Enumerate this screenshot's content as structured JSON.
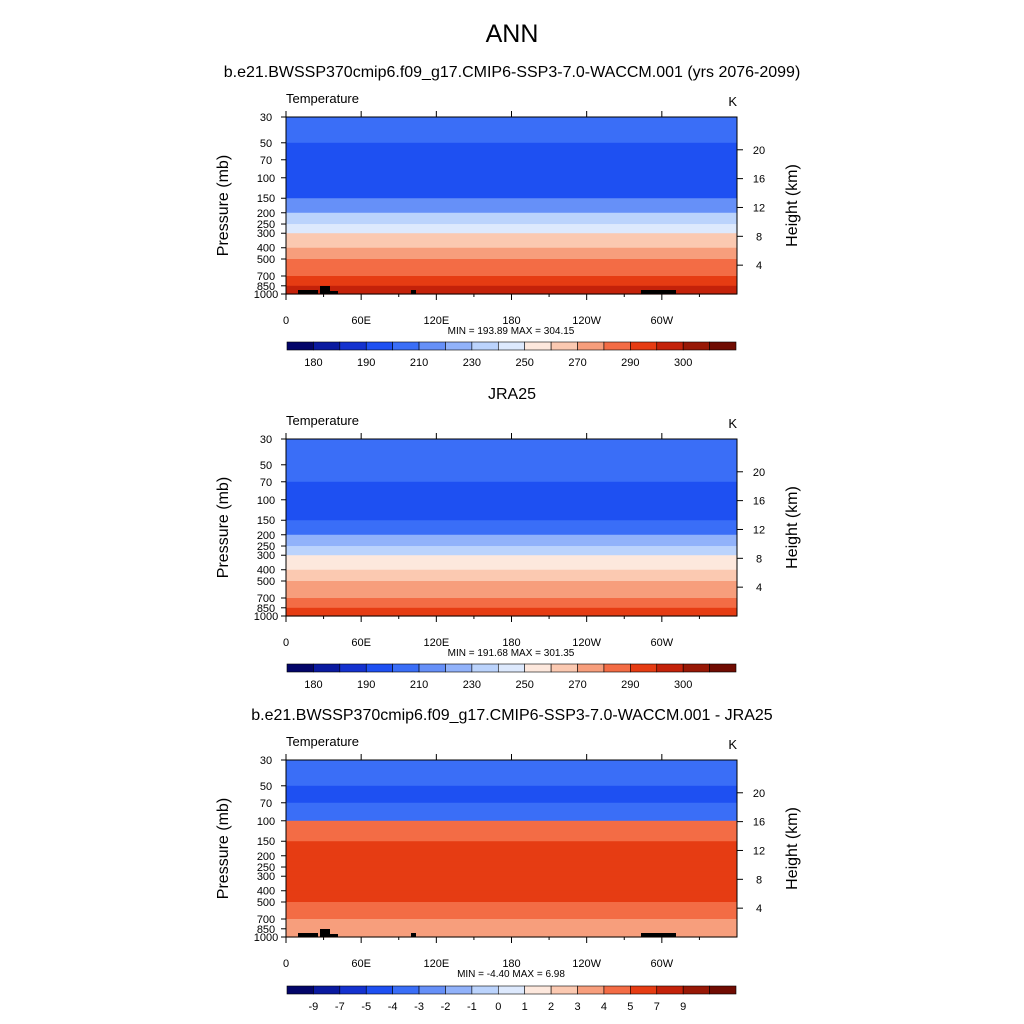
{
  "figure": {
    "title": "ANN",
    "left_axis_label": "Pressure (mb)",
    "right_axis_label": "Height (km)",
    "pressure_ticks": [
      30,
      50,
      70,
      100,
      150,
      200,
      250,
      300,
      400,
      500,
      700,
      850,
      1000
    ],
    "height_ticks": [
      20,
      16,
      12,
      8,
      4
    ],
    "lon_ticks": [
      "0",
      "60E",
      "120E",
      "180",
      "120W",
      "60W"
    ]
  },
  "panels": [
    {
      "title": "b.e21.BWSSP370cmip6.f09_g17.CMIP6-SSP3-7.0-WACCM.001 (yrs 2076-2099)",
      "variable": "Temperature",
      "units": "K",
      "stats": "MIN = 193.89  MAX = 304.15"
    },
    {
      "title": "JRA25",
      "variable": "Temperature",
      "units": "K",
      "stats": "MIN = 191.68  MAX = 301.35"
    },
    {
      "title": "b.e21.BWSSP370cmip6.f09_g17.CMIP6-SSP3-7.0-WACCM.001 - JRA25",
      "variable": "Temperature",
      "units": "K",
      "stats": "MIN =  -4.40  MAX =   6.98"
    }
  ],
  "colors": {
    "abs_palette": [
      "#030569",
      "#0a1aa0",
      "#1432cf",
      "#1e50f2",
      "#3a6ef7",
      "#6690f8",
      "#91b2fa",
      "#bbd3fc",
      "#dde9fd",
      "#fde8dd",
      "#fbc9b1",
      "#f79e7c",
      "#f36c45",
      "#e63c13",
      "#c4220a",
      "#981806",
      "#700c02"
    ],
    "diff_palette": [
      "#030569",
      "#0a1aa0",
      "#1432cf",
      "#1e50f2",
      "#3a6ef7",
      "#6690f8",
      "#91b2fa",
      "#bbd3fc",
      "#dde9fd",
      "#fde8dd",
      "#fbc9b1",
      "#f79e7c",
      "#f36c45",
      "#e63c13",
      "#c4220a",
      "#981806",
      "#700c02"
    ],
    "topography": "#000000"
  },
  "chart_data": [
    {
      "type": "heatmap",
      "title": "b.e21.BWSSP370cmip6.f09_g17.CMIP6-SSP3-7.0-WACCM.001 (yrs 2076-2099)",
      "subtitle": "Temperature",
      "units": "K",
      "x": [
        "0",
        "60E",
        "120E",
        "180",
        "120W",
        "60W"
      ],
      "ylabel": "Pressure (mb)",
      "y2label": "Height (km)",
      "y_pressure_levels": [
        30,
        50,
        70,
        100,
        150,
        200,
        250,
        300,
        400,
        500,
        700,
        850,
        1000
      ],
      "min": 193.89,
      "max": 304.15,
      "colorbar_labels": [
        "180",
        "190",
        "210",
        "230",
        "250",
        "270",
        "290",
        "300"
      ],
      "pressure_band_colors": {
        "30": "#3a6ef7",
        "50": "#1e50f2",
        "70": "#1e50f2",
        "100": "#1e50f2",
        "150": "#6690f8",
        "200": "#bbd3fc",
        "250": "#dde9fd",
        "300": "#fbc9b1",
        "400": "#f79e7c",
        "500": "#f36c45",
        "700": "#e63c13",
        "850": "#c4220a",
        "1000": "#981806"
      }
    },
    {
      "type": "heatmap",
      "title": "JRA25",
      "subtitle": "Temperature",
      "units": "K",
      "x": [
        "0",
        "60E",
        "120E",
        "180",
        "120W",
        "60W"
      ],
      "ylabel": "Pressure (mb)",
      "y2label": "Height (km)",
      "y_pressure_levels": [
        30,
        50,
        70,
        100,
        150,
        200,
        250,
        300,
        400,
        500,
        700,
        850,
        1000
      ],
      "min": 191.68,
      "max": 301.35,
      "colorbar_labels": [
        "180",
        "190",
        "210",
        "230",
        "250",
        "270",
        "290",
        "300"
      ],
      "pressure_band_colors": {
        "30": "#3a6ef7",
        "50": "#3a6ef7",
        "70": "#1e50f2",
        "100": "#1e50f2",
        "150": "#3a6ef7",
        "200": "#91b2fa",
        "250": "#bbd3fc",
        "300": "#fde8dd",
        "400": "#fbc9b1",
        "500": "#f79e7c",
        "700": "#f36c45",
        "850": "#e63c13",
        "1000": "#c4220a"
      }
    },
    {
      "type": "heatmap",
      "title": "b.e21.BWSSP370cmip6.f09_g17.CMIP6-SSP3-7.0-WACCM.001 - JRA25",
      "subtitle": "Temperature",
      "units": "K",
      "x": [
        "0",
        "60E",
        "120E",
        "180",
        "120W",
        "60W"
      ],
      "ylabel": "Pressure (mb)",
      "y2label": "Height (km)",
      "y_pressure_levels": [
        30,
        50,
        70,
        100,
        150,
        200,
        250,
        300,
        400,
        500,
        700,
        850,
        1000
      ],
      "min": -4.4,
      "max": 6.98,
      "colorbar_labels": [
        "-9",
        "-7",
        "-5",
        "-4",
        "-3",
        "-2",
        "-1",
        "0",
        "1",
        "2",
        "3",
        "4",
        "5",
        "7",
        "9"
      ],
      "pressure_band_colors": {
        "30": "#3a6ef7",
        "50": "#1e50f2",
        "70": "#3a6ef7",
        "100": "#f36c45",
        "150": "#e63c13",
        "200": "#e63c13",
        "250": "#e63c13",
        "300": "#e63c13",
        "400": "#e63c13",
        "500": "#f36c45",
        "700": "#f79e7c",
        "850": "#f79e7c",
        "1000": "#f79e7c"
      }
    }
  ]
}
